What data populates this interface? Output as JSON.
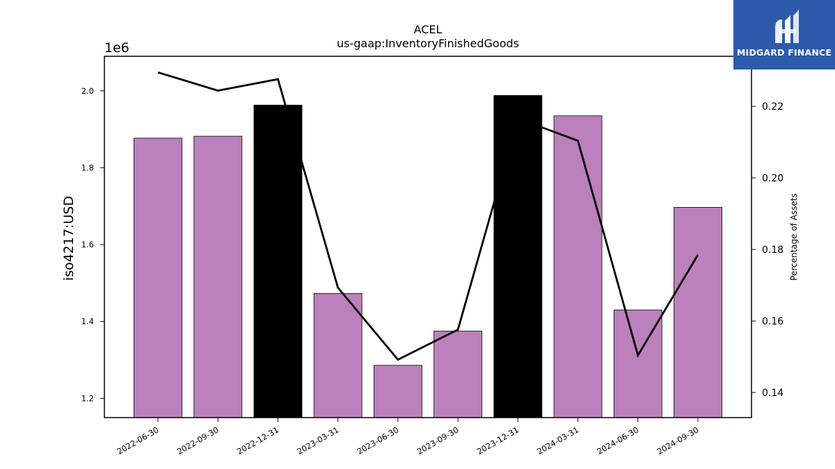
{
  "brand": {
    "name": "MIDGARD FINANCE",
    "logo_icon": "midgard-logo-icon",
    "color": "#2d5aaa"
  },
  "chart_data": {
    "type": "bar",
    "title": "ACEL",
    "subtitle": "us-gaap:InventoryFinishedGoods",
    "ylabel": "iso4217:USD",
    "y_offset_label": "1e6",
    "y2label": "Percentage of Assets",
    "categories": [
      "2022-06-30",
      "2022-09-30",
      "2022-12-31",
      "2023-03-31",
      "2023-06-30",
      "2023-09-30",
      "2023-12-31",
      "2024-03-31",
      "2024-06-30",
      "2024-09-30"
    ],
    "series": [
      {
        "type": "bar",
        "axis": "left",
        "values": [
          1877000,
          1882000,
          1963000,
          1473000,
          1286000,
          1375000,
          1988000,
          1935000,
          1430000,
          1697000
        ],
        "colors": [
          "#bc80bd",
          "#bc80bd",
          "#000000",
          "#bc80bd",
          "#bc80bd",
          "#bc80bd",
          "#000000",
          "#bc80bd",
          "#bc80bd",
          "#bc80bd"
        ]
      },
      {
        "type": "line",
        "axis": "right",
        "color": "#000000",
        "values": [
          0.2295,
          0.2244,
          0.2276,
          0.1693,
          0.1492,
          0.1576,
          0.2166,
          0.2104,
          0.1504,
          0.1785
        ]
      }
    ],
    "ylim": [
      1150000,
      2090000
    ],
    "y_ticks": [
      1200000,
      1400000,
      1600000,
      1800000,
      2000000
    ],
    "y_tick_labels": [
      "1.2",
      "1.4",
      "1.6",
      "1.8",
      "2.0"
    ],
    "y2lim": [
      0.133,
      0.234
    ],
    "y2_ticks": [
      0.14,
      0.16,
      0.18,
      0.2,
      0.22
    ],
    "y2_tick_labels": [
      "0.14",
      "0.16",
      "0.18",
      "0.20",
      "0.22"
    ],
    "grid": false
  }
}
